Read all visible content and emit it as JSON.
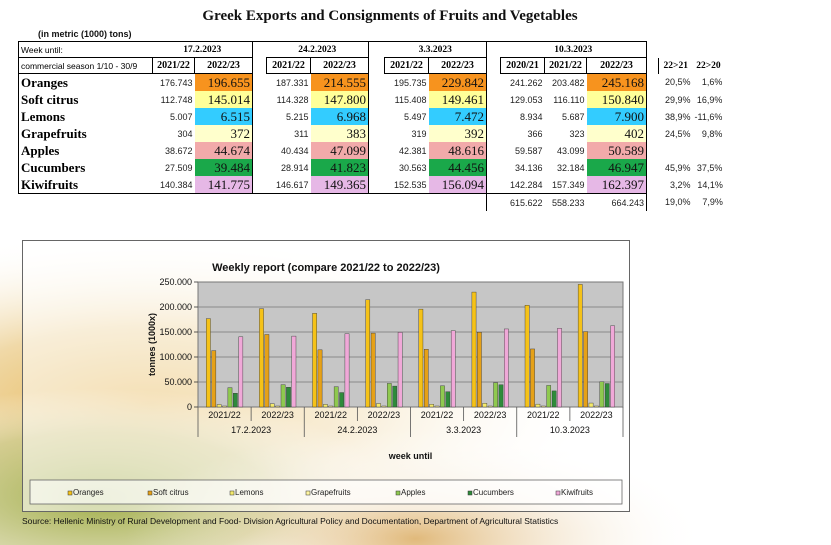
{
  "title": "Greek Exports and Consignments of Fruits and Vegetables",
  "unit_note": "(in metric (1000) tons)",
  "week_label": "Week until:",
  "season_label": "commercial season 1/10 - 30/9",
  "weeks": [
    "17.2.2023",
    "24.2.2023",
    "3.3.2023",
    "10.3.2023"
  ],
  "season_headers": [
    "2021/22",
    "2022/23"
  ],
  "last_week_headers": [
    "2020/21",
    "2021/22",
    "2022/23"
  ],
  "pct_headers": [
    "22>21",
    "22>20"
  ],
  "colors": {
    "Oranges": "#f7931e",
    "Soft citrus": "#ffff99",
    "Lemons": "#33ccff",
    "Grapefruits": "#ffffcc",
    "Apples": "#f2aaaa",
    "Cucumbers": "#1aa84a",
    "Kiwifruits": "#e6b8e6"
  },
  "rows": [
    {
      "name": "Oranges",
      "v": [
        "176.743",
        "196.655",
        "187.331",
        "214.555",
        "195.735",
        "229.842",
        "241.262",
        "203.482",
        "245.168"
      ],
      "pct": [
        "20,5%",
        "1,6%"
      ]
    },
    {
      "name": "Soft citrus",
      "v": [
        "112.748",
        "145.014",
        "114.328",
        "147.800",
        "115.408",
        "149.461",
        "129.053",
        "116.110",
        "150.840"
      ],
      "pct": [
        "29,9%",
        "16,9%"
      ]
    },
    {
      "name": "Lemons",
      "v": [
        "5.007",
        "6.515",
        "5.215",
        "6.968",
        "5.497",
        "7.472",
        "8.934",
        "5.687",
        "7.900"
      ],
      "pct": [
        "38,9%",
        "-11,6%"
      ]
    },
    {
      "name": "Grapefruits",
      "v": [
        "304",
        "372",
        "311",
        "383",
        "319",
        "392",
        "366",
        "323",
        "402"
      ],
      "pct": [
        "24,5%",
        "9,8%"
      ]
    },
    {
      "name": "Apples",
      "v": [
        "38.672",
        "44.674",
        "40.434",
        "47.099",
        "42.381",
        "48.616",
        "59.587",
        "43.099",
        "50.589"
      ],
      "pct": [
        "",
        ""
      ]
    },
    {
      "name": "Cucumbers",
      "v": [
        "27.509",
        "39.484",
        "28.914",
        "41.823",
        "30.563",
        "44.456",
        "34.136",
        "32.184",
        "46.947"
      ],
      "pct": [
        "45,9%",
        "37,5%"
      ]
    },
    {
      "name": "Kiwifruits",
      "v": [
        "140.384",
        "141.775",
        "146.617",
        "149.365",
        "152.535",
        "156.094",
        "142.284",
        "157.349",
        "162.397"
      ],
      "pct": [
        "3,2%",
        "14,1%"
      ]
    }
  ],
  "totals": {
    "v": [
      "615.622",
      "558.233",
      "664.243"
    ],
    "pct": [
      "19,0%",
      "7,9%"
    ]
  },
  "source": "Source: Hellenic Ministry of Rural Development and Food- Division Agricultural Policy and Documentation, Department of Agricultural Statistics",
  "chart_data": {
    "type": "bar",
    "title": "Weekly report (compare 2021/22 to 2022/23)",
    "xlabel": "week until",
    "ylabel": "tonnes (1000x)",
    "ylim": [
      0,
      250000
    ],
    "yticks": [
      "0",
      "50.000",
      "100.000",
      "150.000",
      "200.000",
      "250.000"
    ],
    "ytick_values": [
      0,
      50000,
      100000,
      150000,
      200000,
      250000
    ],
    "categories": [
      "2021/22",
      "2022/23",
      "2021/22",
      "2022/23",
      "2021/22",
      "2022/23",
      "2021/22",
      "2022/23"
    ],
    "groups": [
      "17.2.2023",
      "24.2.2023",
      "3.3.2023",
      "10.3.2023"
    ],
    "grid": true,
    "legend": "bottom",
    "series": [
      {
        "name": "Oranges",
        "color": "#f5c218",
        "values": [
          176743,
          196655,
          187331,
          214555,
          195735,
          229842,
          203482,
          245168
        ]
      },
      {
        "name": "Soft citrus",
        "color": "#e6a117",
        "values": [
          112748,
          145014,
          114328,
          147800,
          115408,
          149461,
          116110,
          150840
        ]
      },
      {
        "name": "Lemons",
        "color": "#f4ea6b",
        "values": [
          5007,
          6515,
          5215,
          6968,
          5497,
          7472,
          5687,
          7900
        ]
      },
      {
        "name": "Grapefruits",
        "color": "#fff6a0",
        "values": [
          304,
          372,
          311,
          383,
          319,
          392,
          323,
          402
        ]
      },
      {
        "name": "Apples",
        "color": "#8fc94f",
        "values": [
          38672,
          44674,
          40434,
          47099,
          42381,
          48616,
          43099,
          50589
        ]
      },
      {
        "name": "Cucumbers",
        "color": "#2e8b3a",
        "values": [
          27509,
          39484,
          28914,
          41823,
          30563,
          44456,
          32184,
          46947
        ]
      },
      {
        "name": "Kiwifruits",
        "color": "#f0a8d8",
        "values": [
          140384,
          141775,
          146617,
          149365,
          152535,
          156094,
          157349,
          162397
        ]
      }
    ]
  }
}
